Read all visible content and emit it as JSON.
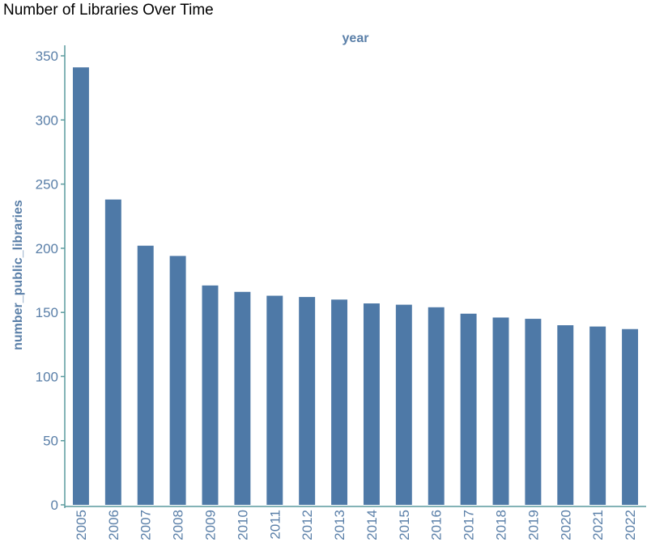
{
  "chart_data": {
    "type": "bar",
    "title": "Number of Libraries Over Time",
    "xlabel": "year",
    "ylabel": "number_public_libraries",
    "categories": [
      "2005",
      "2006",
      "2007",
      "2008",
      "2009",
      "2010",
      "2011",
      "2012",
      "2013",
      "2014",
      "2015",
      "2016",
      "2017",
      "2018",
      "2019",
      "2020",
      "2021",
      "2022"
    ],
    "values": [
      341,
      238,
      202,
      194,
      171,
      166,
      163,
      162,
      160,
      157,
      156,
      154,
      149,
      146,
      145,
      140,
      139,
      137
    ],
    "yticks": [
      0,
      50,
      100,
      150,
      200,
      250,
      300,
      350
    ],
    "ylim": [
      0,
      350
    ],
    "grid": false,
    "x_axis_position": "top",
    "colors": {
      "bar": "#4e79a7",
      "axis": "#5a9a9e",
      "tick_text": "#5a7fa8"
    }
  }
}
